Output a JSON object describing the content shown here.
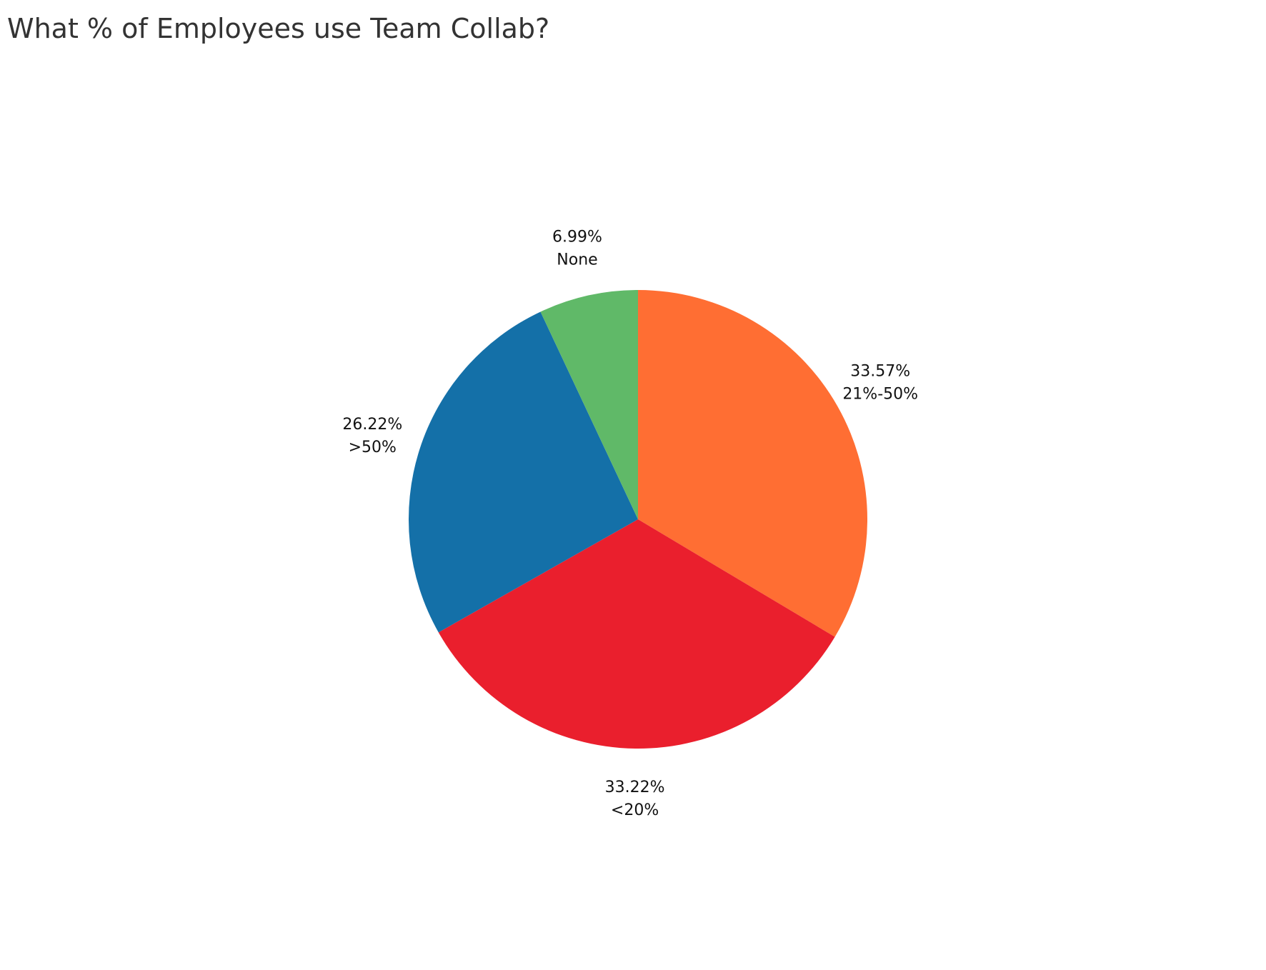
{
  "chart_data": {
    "type": "pie",
    "title": "What % of Employees use Team Collab?",
    "slices": [
      {
        "label": "21%-50%",
        "value": 33.57,
        "value_label": "33.57%",
        "color": "#FF6E33"
      },
      {
        "label": "<20%",
        "value": 33.22,
        "value_label": "33.22%",
        "color": "#EA1F2D"
      },
      {
        "label": ">50%",
        "value": 26.22,
        "value_label": "26.22%",
        "color": "#1470A8"
      },
      {
        "label": "None",
        "value": 6.99,
        "value_label": "6.99%",
        "color": "#60B968"
      }
    ],
    "start": "12 o'clock",
    "direction": "clockwise",
    "legend": "none"
  }
}
